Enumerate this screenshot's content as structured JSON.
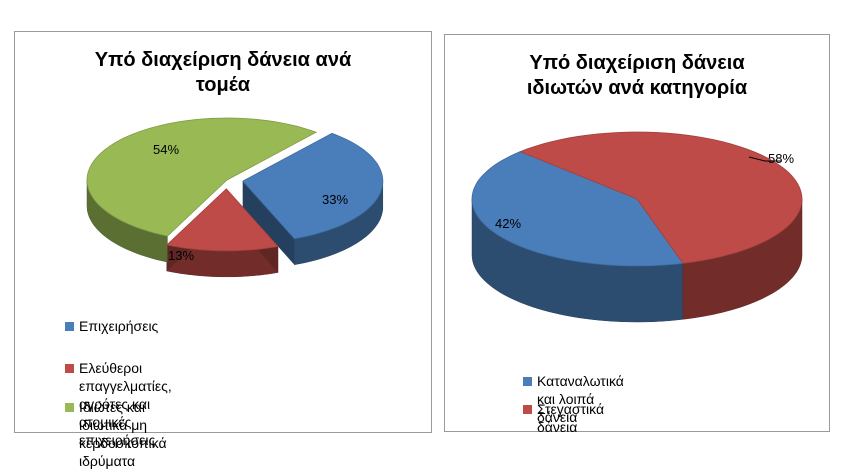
{
  "chart_data": [
    {
      "type": "pie",
      "title_lines": [
        "Υπό διαχείριση δάνεια ανά",
        "τομέα"
      ],
      "labels": [
        "Επιχειρήσεις",
        "Ελεύθεροι επαγγελματίες, αγρότες και ατομικές επιχειρήσεις",
        "Ιδιώτες και ιδιωτικά μη κερδοσκοπικά ιδρύματα"
      ],
      "values": [
        33,
        13,
        54
      ],
      "data_labels": [
        "33%",
        "13%",
        "54%"
      ],
      "colors": [
        "#4a7ebb",
        "#be4b48",
        "#98b954"
      ],
      "style": "3d-exploded",
      "legend_position": "bottom"
    },
    {
      "type": "pie",
      "title_lines": [
        "Υπό διαχείριση δάνεια",
        "ιδιωτών ανά κατηγορία"
      ],
      "labels": [
        "Καταναλωτικά και λοιπά δάνεια",
        "Στεγαστικά δάνεια"
      ],
      "values": [
        42,
        58
      ],
      "data_labels": [
        "42%",
        "58%"
      ],
      "colors": [
        "#4a7ebb",
        "#be4b48"
      ],
      "style": "3d",
      "legend_position": "bottom"
    }
  ],
  "legend1": [
    {
      "line1": "Επιχειρήσεις",
      "line2": ""
    },
    {
      "line1": "Ελεύθεροι επαγγελματίες, αγρότες και ατομικές",
      "line2": "επιχειρήσεις"
    },
    {
      "line1": "Ιδιώτες και ιδιωτικά μη κερδοσκοπικά ιδρύματα",
      "line2": ""
    }
  ],
  "legend2": [
    {
      "line1": "Καταναλωτικά και λοιπά δάνεια"
    },
    {
      "line1": "Στεγαστικά δάνεια"
    }
  ]
}
